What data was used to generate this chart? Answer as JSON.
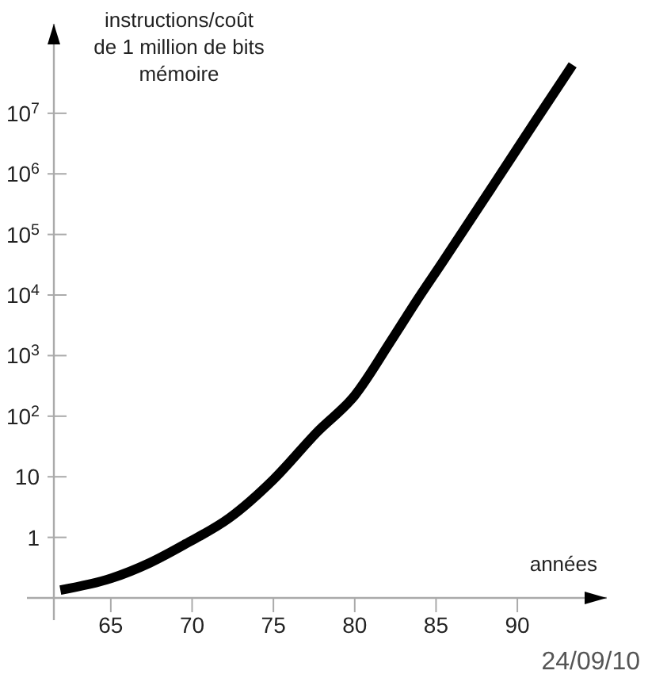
{
  "chart_data": {
    "type": "line",
    "ylabel": "instructions/coût de 1 million de bits mémoire",
    "xlabel": "années",
    "log": "y",
    "xlim": [
      61.5,
      95.5
    ],
    "ylim": [
      0.1,
      300000000
    ],
    "xticks": [
      65,
      70,
      75,
      80,
      85,
      90
    ],
    "yticks": [
      1,
      10,
      {
        "value": 100,
        "label": "10$^{2}$"
      },
      {
        "value": 1000,
        "label": "10$^{3}$"
      },
      {
        "value": 10000,
        "label": "10$^{4}$"
      },
      {
        "value": 100000,
        "label": "10$^{5}$"
      },
      {
        "value": 1000000,
        "label": "10$^{6}$"
      },
      {
        "value": 10000000,
        "label": "10$^{7}$"
      }
    ],
    "x": [
      61.9,
      65,
      67.4,
      69.6,
      72.3,
      75,
      77.7,
      80,
      82.2,
      83.8,
      85.4,
      88.6,
      91.1,
      93.4
    ],
    "series": [
      {
        "color": "#000000",
        "values": [
          0.135,
          0.21,
          0.38,
          0.78,
          2.1,
          9,
          55,
          220,
          1700,
          8000,
          35000,
          700000,
          7400000,
          63000000
        ]
      }
    ],
    "grid": false,
    "marker": "none",
    "line_style": "solid",
    "annotations": [
      "24/09/10"
    ]
  }
}
